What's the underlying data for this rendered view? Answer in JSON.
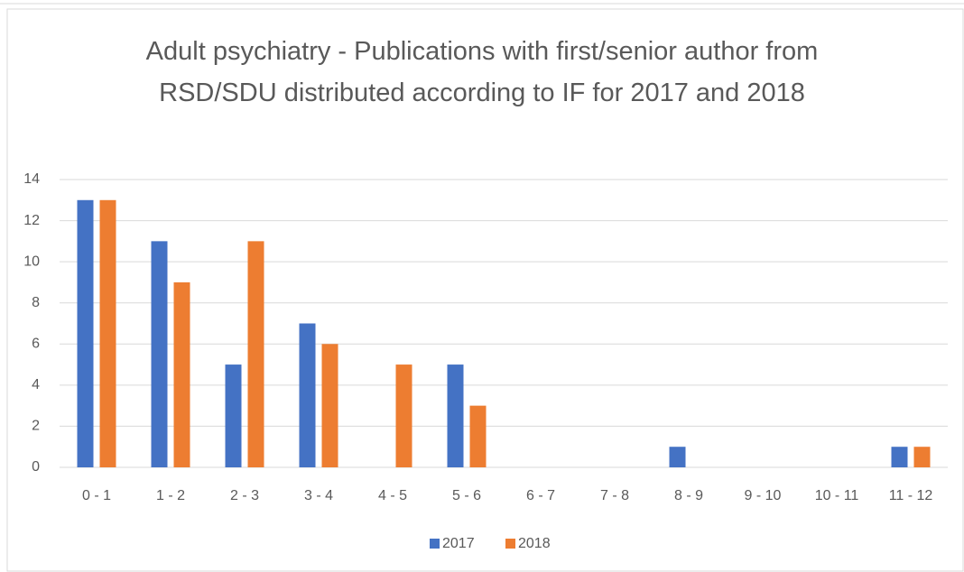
{
  "chart_data": {
    "type": "bar",
    "title": "Adult psychiatry - Publications with first/senior author from RSD/SDU distributed according to IF for 2017 and 2018",
    "categories": [
      "0 - 1",
      "1 - 2",
      "2 - 3",
      "3 - 4",
      "4 - 5",
      "5 - 6",
      "6 - 7",
      "7 - 8",
      "8 - 9",
      "9 - 10",
      "10 - 11",
      "11 - 12"
    ],
    "series": [
      {
        "name": "2017",
        "color": "#4472c4",
        "values": [
          13,
          11,
          5,
          7,
          0,
          5,
          0,
          0,
          1,
          0,
          0,
          1
        ]
      },
      {
        "name": "2018",
        "color": "#ed7d31",
        "values": [
          13,
          9,
          11,
          6,
          5,
          3,
          0,
          0,
          0,
          0,
          0,
          1
        ]
      }
    ],
    "ylim": [
      0,
      14
    ],
    "yticks": [
      0,
      2,
      4,
      6,
      8,
      10,
      12,
      14
    ],
    "grid": true,
    "legend": "bottom"
  }
}
